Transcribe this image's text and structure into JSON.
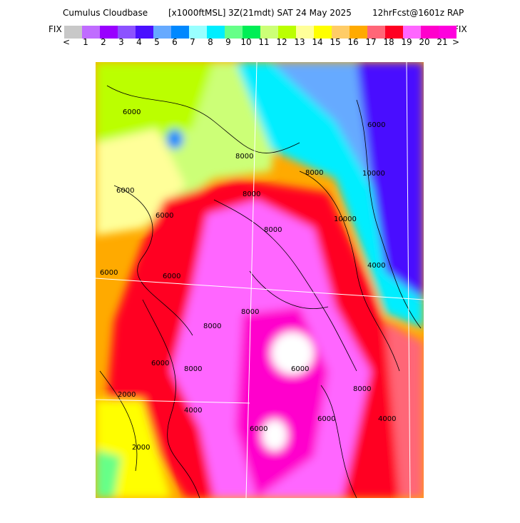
{
  "header": {
    "title": "Cumulus Cloudbase",
    "units": "[x1000ftMSL]",
    "time": "3Z(21mdt) SAT 24 May 2025",
    "forecast": "12hrFcst@1601z RAP"
  },
  "colorbar": {
    "left_label": "FIX",
    "right_label": "FIX",
    "lower_arrow": "<",
    "upper_arrow": ">",
    "colors": [
      "#c8c8c8",
      "#c06cff",
      "#9900ff",
      "#8c52ff",
      "#4a10ff",
      "#66aaff",
      "#0088ff",
      "#99ffff",
      "#00eeff",
      "#66ff88",
      "#00ee55",
      "#ccff77",
      "#bbff00",
      "#ffff99",
      "#ffff00",
      "#ffcc66",
      "#ffaa00",
      "#ff6677",
      "#ff0022",
      "#ff66ff",
      "#ff00cc",
      "#ff00dd"
    ],
    "ticks": [
      "1",
      "2",
      "3",
      "4",
      "5",
      "6",
      "7",
      "8",
      "9",
      "10",
      "11",
      "12",
      "13",
      "14",
      "15",
      "16",
      "17",
      "18",
      "19",
      "20",
      "21"
    ]
  },
  "map": {
    "contour_labels": [
      "6000",
      "6000",
      "8000",
      "8000",
      "6000",
      "6000",
      "8000",
      "10000",
      "6000",
      "8000",
      "8000",
      "6000",
      "6000",
      "8000",
      "2000",
      "8000",
      "6000",
      "4000",
      "6000",
      "2000",
      "4000",
      "6000",
      "4000",
      "8000",
      "10000"
    ]
  }
}
